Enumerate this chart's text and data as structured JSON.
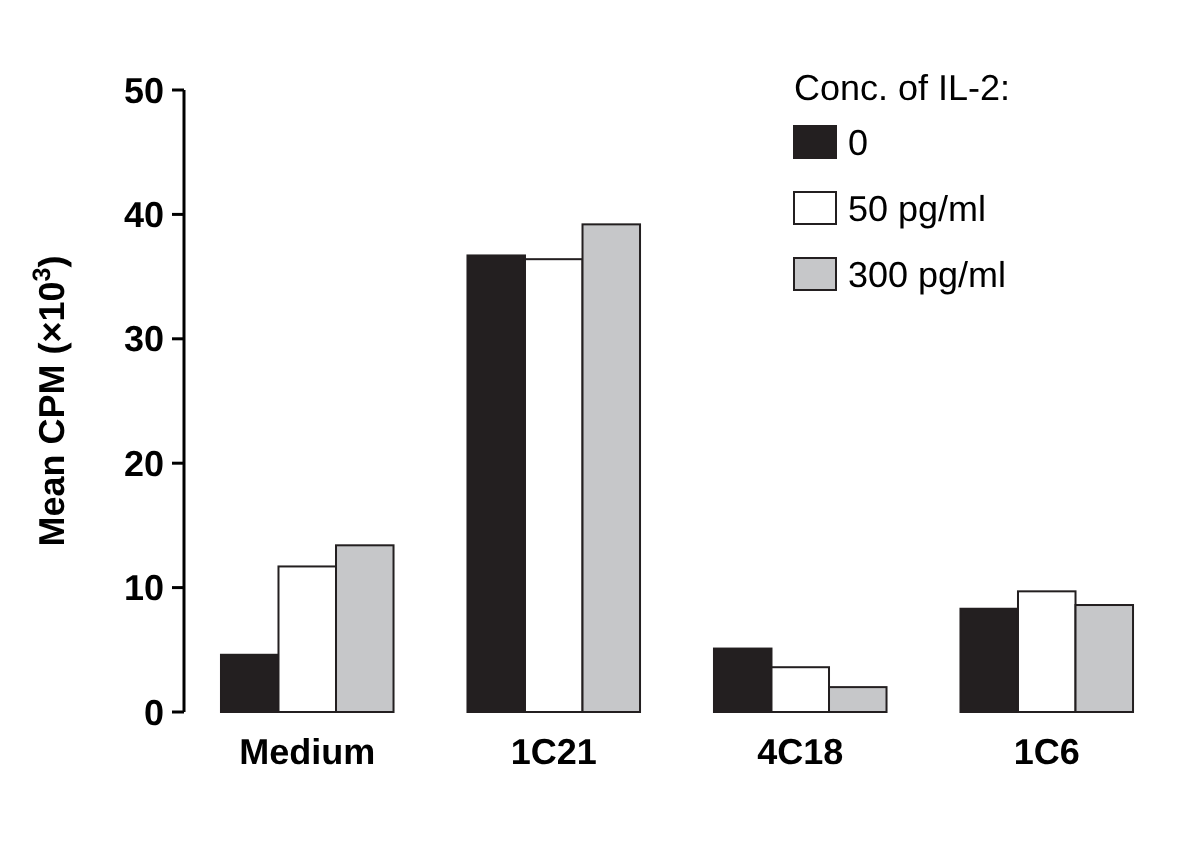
{
  "chart_data": {
    "type": "bar",
    "ylabel": "Mean CPM (×10$^{3}$)",
    "legend_title": "Conc. of IL-2:",
    "categories": [
      "Medium",
      "1C21",
      "4C18",
      "1C6"
    ],
    "series": [
      {
        "name": "0",
        "color": "#231f20",
        "values": [
          4.6,
          36.7,
          5.1,
          8.3
        ]
      },
      {
        "name": "50 pg/ml",
        "color": "#ffffff",
        "values": [
          11.7,
          36.4,
          3.6,
          9.7
        ]
      },
      {
        "name": "300 pg/ml",
        "color": "#c6c7c9",
        "values": [
          13.4,
          39.2,
          2,
          8.6
        ]
      }
    ],
    "ylim": [
      0,
      50
    ],
    "yticks": [
      0,
      10,
      20,
      30,
      40,
      50
    ],
    "legend": "top right",
    "grid": false
  }
}
